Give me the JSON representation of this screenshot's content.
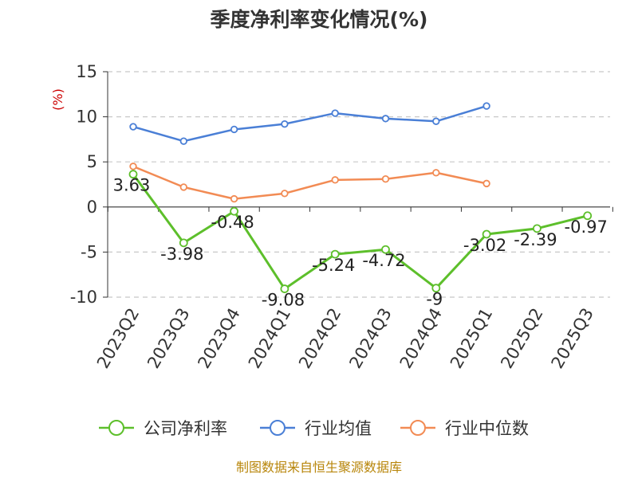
{
  "chart_data": {
    "type": "line",
    "title": "季度净利率变化情况(%)",
    "ylabel": "(%)",
    "xlabel": "",
    "categories": [
      "2023Q2",
      "2023Q3",
      "2023Q4",
      "2024Q1",
      "2024Q2",
      "2024Q3",
      "2024Q4",
      "2025Q1",
      "2025Q2",
      "2025Q3"
    ],
    "ylim": [
      -10,
      15
    ],
    "yticks": [
      15,
      10,
      5,
      0,
      -5,
      -10
    ],
    "grid": true,
    "legend_position": "bottom",
    "series": [
      {
        "name": "公司净利率",
        "color": "#5dbf2b",
        "values": [
          3.63,
          -3.98,
          -0.48,
          -9.08,
          -5.24,
          -4.72,
          -9,
          -3.02,
          -2.39,
          -0.97
        ],
        "labels": [
          "3.63",
          "-3.98",
          "-0.48",
          "-9.08",
          "-5.24",
          "-4.72",
          "-9",
          "-3.02",
          "-2.39",
          "-0.97"
        ]
      },
      {
        "name": "行业均值",
        "color": "#4a7fd6",
        "values": [
          8.9,
          7.3,
          8.6,
          9.2,
          10.4,
          9.8,
          9.5,
          11.2,
          null,
          null
        ]
      },
      {
        "name": "行业中位数",
        "color": "#f28b54",
        "values": [
          4.5,
          2.2,
          0.9,
          1.5,
          3.0,
          3.1,
          3.8,
          2.6,
          null,
          null
        ]
      }
    ]
  },
  "footer": {
    "source": "制图数据来自恒生聚源数据库"
  }
}
